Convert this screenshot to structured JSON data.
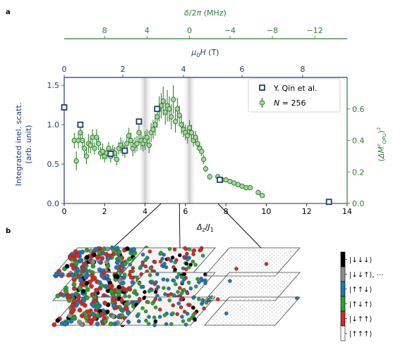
{
  "panel_labels": {
    "a": "a",
    "b": "b"
  },
  "colors": {
    "blue": "#1f3c78",
    "green": "#2e7d32",
    "green_fill": "#a8d89a",
    "grey_band": "#cfcfcf",
    "red": "#d62728",
    "bluepoint": "#1f77b4",
    "greenpoint": "#2ca02c"
  },
  "chart_data": {
    "type": "scatter",
    "xlabel": "Δz/J1",
    "ylabel_left": "Integrated inel. scatt.",
    "ylabel_left_2": "(arb. unit)",
    "ylabel_right": "(ΔM^z_QPU)^2",
    "top_axis_1": {
      "label": "δ/2π (MHz)",
      "ticks": [
        "8",
        "4",
        "0",
        "−4",
        "−8",
        "−12"
      ],
      "tick_positions_x": [
        2.0,
        4.1,
        6.2,
        8.2,
        10.3,
        12.4
      ]
    },
    "top_axis_2": {
      "label": "μ0H (T)",
      "ticks": [
        "0",
        "2",
        "4",
        "6",
        "8"
      ],
      "tick_positions_x": [
        0.0,
        2.9,
        5.9,
        8.8,
        11.8
      ]
    },
    "x_ticks": [
      "0",
      "2",
      "4",
      "6",
      "8",
      "10",
      "12",
      "14"
    ],
    "y_left_ticks": [
      "0.0",
      "0.5",
      "1.0",
      "1.5"
    ],
    "y_right_ticks": [
      "0.0",
      "0.2",
      "0.4",
      "0.6"
    ],
    "xlim": [
      0,
      14
    ],
    "ylim_left": [
      0,
      1.6
    ],
    "ylim_right": [
      0,
      0.8
    ],
    "shaded_bands_x": [
      4.0,
      6.2
    ],
    "legend": {
      "placement": "top-right",
      "entries": [
        "Y. Qin et al.",
        "N = 256"
      ]
    },
    "series": [
      {
        "name": "Y. Qin et al.",
        "axis": "left",
        "marker": "square",
        "x": [
          0.0,
          0.8,
          2.3,
          3.0,
          3.7,
          4.6,
          7.7,
          13.1
        ],
        "y": [
          1.22,
          1.0,
          0.63,
          0.67,
          1.04,
          1.2,
          0.3,
          0.02
        ]
      },
      {
        "name": "N = 256",
        "axis": "right",
        "marker": "circle",
        "x": [
          0.5,
          0.6,
          0.7,
          0.8,
          0.9,
          1.0,
          1.1,
          1.2,
          1.3,
          1.4,
          1.5,
          1.6,
          1.7,
          1.8,
          1.9,
          2.0,
          2.1,
          2.2,
          2.3,
          2.4,
          2.5,
          2.6,
          2.7,
          2.8,
          2.9,
          3.0,
          3.1,
          3.2,
          3.3,
          3.4,
          3.5,
          3.6,
          3.7,
          3.8,
          3.9,
          4.0,
          4.1,
          4.2,
          4.3,
          4.4,
          4.5,
          4.6,
          4.7,
          4.8,
          4.9,
          5.0,
          5.1,
          5.2,
          5.3,
          5.4,
          5.5,
          5.6,
          5.7,
          5.8,
          5.9,
          6.0,
          6.1,
          6.2,
          6.3,
          6.4,
          6.5,
          6.6,
          6.7,
          6.8,
          6.9,
          7.0,
          7.2,
          7.6,
          7.8,
          8.0,
          8.2,
          8.4,
          8.6,
          8.8,
          9.0,
          9.2,
          9.6,
          9.8
        ],
        "y": [
          0.4,
          0.27,
          0.4,
          0.45,
          0.4,
          0.35,
          0.3,
          0.38,
          0.37,
          0.42,
          0.35,
          0.42,
          0.38,
          0.32,
          0.33,
          0.3,
          0.32,
          0.35,
          0.3,
          0.33,
          0.32,
          0.28,
          0.35,
          0.37,
          0.35,
          0.33,
          0.38,
          0.43,
          0.4,
          0.35,
          0.37,
          0.38,
          0.45,
          0.4,
          0.38,
          0.4,
          0.42,
          0.37,
          0.45,
          0.47,
          0.5,
          0.55,
          0.6,
          0.62,
          0.65,
          0.58,
          0.62,
          0.6,
          0.55,
          0.66,
          0.52,
          0.6,
          0.56,
          0.5,
          0.47,
          0.45,
          0.43,
          0.48,
          0.45,
          0.4,
          0.42,
          0.38,
          0.35,
          0.33,
          0.28,
          0.22,
          0.17,
          0.17,
          0.15,
          0.15,
          0.14,
          0.13,
          0.12,
          0.11,
          0.1,
          0.1,
          0.07,
          0.05
        ],
        "err": [
          0.05,
          0.06,
          0.05,
          0.05,
          0.05,
          0.06,
          0.05,
          0.06,
          0.05,
          0.05,
          0.04,
          0.05,
          0.04,
          0.04,
          0.05,
          0.04,
          0.04,
          0.04,
          0.04,
          0.04,
          0.04,
          0.04,
          0.04,
          0.05,
          0.05,
          0.04,
          0.05,
          0.05,
          0.05,
          0.05,
          0.05,
          0.05,
          0.06,
          0.06,
          0.05,
          0.06,
          0.05,
          0.05,
          0.06,
          0.06,
          0.07,
          0.07,
          0.08,
          0.08,
          0.09,
          0.08,
          0.1,
          0.08,
          0.08,
          0.09,
          0.07,
          0.07,
          0.06,
          0.06,
          0.05,
          0.05,
          0.05,
          0.05,
          0.05,
          0.04,
          0.04,
          0.04,
          0.03,
          0.03,
          0.03,
          0.02,
          0.02,
          0.01,
          0.01,
          0.01,
          0.01,
          0.01,
          0.01,
          0.01,
          0.01,
          0.01,
          0.01,
          0.01
        ]
      }
    ]
  },
  "state_legend": {
    "labels": [
      "|↓↓↓⟩",
      "|↓↓↑⟩, ⋯",
      "|↑↑↓⟩",
      "|↑↓↑⟩",
      "|↓↑↑⟩",
      "|↑↑↑⟩"
    ],
    "colors": [
      "#000000",
      "#8c8c8c",
      "#1f77b4",
      "#2ca02c",
      "#d62728",
      "#ffffff"
    ]
  },
  "snapshot_points": [
    4.8,
    5.7,
    7.6
  ]
}
